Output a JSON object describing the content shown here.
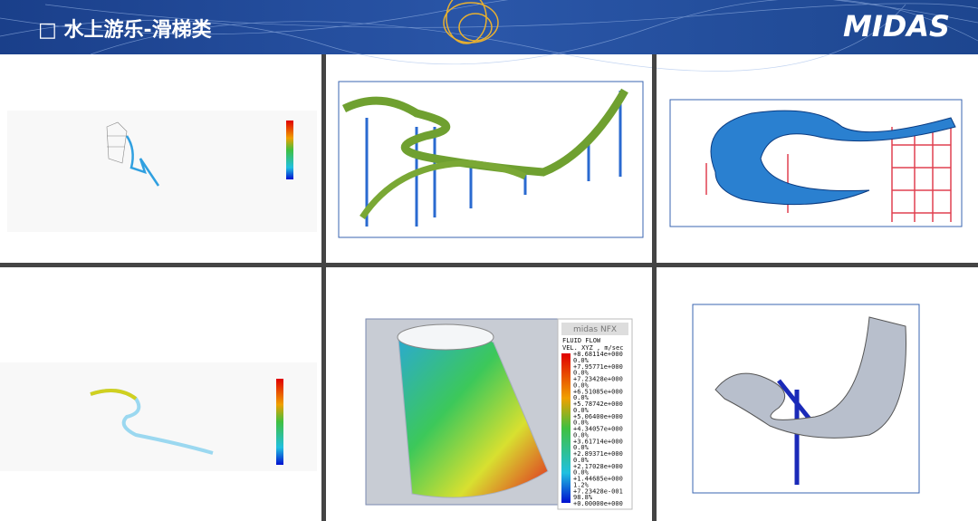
{
  "header": {
    "title": "□ 水上游乐-滑梯类",
    "logo": "MIDAS"
  },
  "legend": {
    "brand": "midas NFX",
    "title": "FLUID FLOW",
    "quantity": "VEL. XYZ , m/sec",
    "values": [
      "+8.68114e+000",
      "+7.95771e+000",
      "+7.23428e+000",
      "+6.51085e+000",
      "+5.78742e+000",
      "+5.06400e+000",
      "+4.34057e+000",
      "+3.61714e+000",
      "+2.89371e+000",
      "+2.17028e+000",
      "+1.44685e+000",
      "+7.23428e-001",
      "+0.00000e+000"
    ],
    "percents": [
      "0.0%",
      "0.0%",
      "0.0%",
      "0.0%",
      "0.0%",
      "0.0%",
      "0.0%",
      "0.0%",
      "0.0%",
      "0.0%",
      "1.2%",
      "98.8%"
    ]
  }
}
